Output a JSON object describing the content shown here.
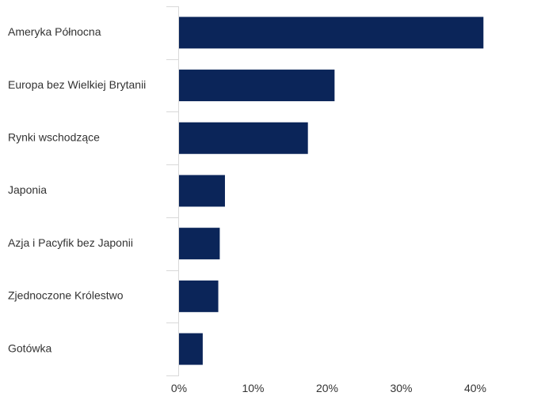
{
  "chart_data": {
    "type": "bar",
    "orientation": "horizontal",
    "categories": [
      "Ameryka Północna",
      "Europa bez Wielkiej Brytanii",
      "Rynki wschodzące",
      "Japonia",
      "Azja i Pacyfik bez Japonii",
      "Zjednoczone Królestwo",
      "Gotówka"
    ],
    "values": [
      41.1,
      21.0,
      17.4,
      6.2,
      5.5,
      5.3,
      3.2
    ],
    "xlim": [
      0,
      45
    ],
    "xticks": [
      0,
      10,
      20,
      30,
      40
    ],
    "xtick_labels": [
      "0%",
      "10%",
      "20%",
      "30%",
      "40%"
    ],
    "title": "",
    "xlabel": "",
    "ylabel": "",
    "grid": false,
    "legend": "none",
    "bar_color": "#0b2559",
    "axis_color": "#d9d9d9",
    "text_color": "#333333"
  }
}
